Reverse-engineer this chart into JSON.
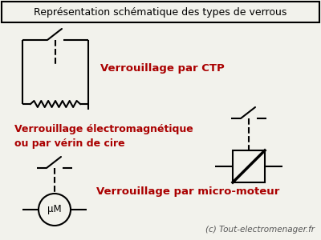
{
  "title": "Représentation schématique des types de verrous",
  "bg_color": "#f2f2ec",
  "line_color": "#000000",
  "text_color": "#aa0000",
  "footer_color": "#555555",
  "footer": "(c) Tout-electromenager.fr",
  "label_ctp": "Verrouillage par CTP",
  "label_em": "Verrouillage électromagnétique\nou par vérin de cire",
  "label_motor": "Verrouillage par micro-moteur",
  "figsize": [
    4.0,
    3.0
  ],
  "dpi": 100
}
